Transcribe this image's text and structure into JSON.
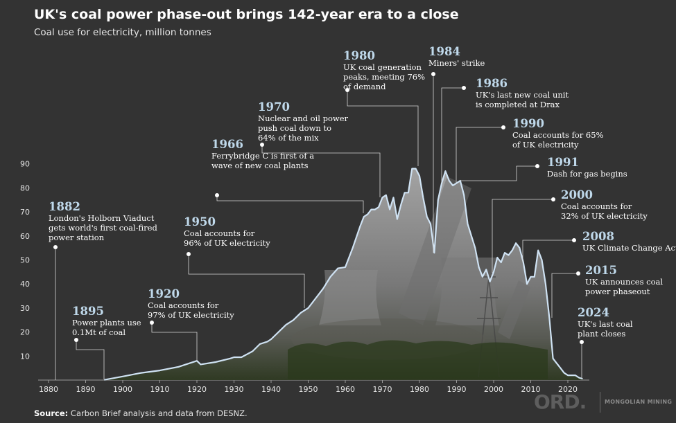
{
  "header": {
    "title": "UK's coal power phase-out brings 142-year era to a close",
    "subtitle": "Coal use for electricity, million tonnes"
  },
  "footer": {
    "source_label": "Source:",
    "source_text": "Carbon Brief analysis and data from DESNZ."
  },
  "logo": {
    "main": "ORD.",
    "sub": "MONGOLIAN MINING"
  },
  "colors": {
    "background": "#333333",
    "line": "#cfe2f3",
    "area": "#9a9a9a",
    "year_text": "#bfd8ea",
    "leader": "#d8d8d8"
  },
  "chart_data": {
    "type": "area",
    "title": "UK's coal power phase-out brings 142-year era to a close",
    "subtitle": "Coal use for electricity, million tonnes",
    "xlabel": "",
    "ylabel": "",
    "xlim": [
      1876,
      2026
    ],
    "ylim": [
      0,
      90
    ],
    "x_ticks": [
      1880,
      1890,
      1900,
      1910,
      1920,
      1930,
      1940,
      1950,
      1960,
      1970,
      1980,
      1990,
      2000,
      2010,
      2020
    ],
    "y_ticks": [
      10,
      20,
      30,
      40,
      50,
      60,
      70,
      80,
      90
    ],
    "grid": false,
    "series": [
      {
        "name": "Coal use for electricity",
        "x": [
          1895,
          1900,
          1905,
          1910,
          1915,
          1918,
          1920,
          1921,
          1925,
          1929,
          1930,
          1932,
          1935,
          1937,
          1939,
          1940,
          1944,
          1946,
          1948,
          1950,
          1952,
          1954,
          1956,
          1958,
          1960,
          1962,
          1964,
          1965,
          1966,
          1967,
          1968,
          1969,
          1970,
          1971,
          1972,
          1973,
          1974,
          1975,
          1976,
          1977,
          1978,
          1979,
          1980,
          1981,
          1982,
          1983,
          1984,
          1985,
          1986,
          1987,
          1988,
          1989,
          1990,
          1991,
          1992,
          1993,
          1994,
          1995,
          1996,
          1997,
          1998,
          1999,
          2000,
          2001,
          2002,
          2003,
          2004,
          2005,
          2006,
          2007,
          2008,
          2009,
          2010,
          2011,
          2012,
          2013,
          2014,
          2015,
          2016,
          2017,
          2018,
          2019,
          2020,
          2021,
          2022,
          2023,
          2024
        ],
        "values": [
          0.1,
          1.5,
          3,
          4,
          5.5,
          7,
          8,
          6.5,
          7.5,
          9,
          9.5,
          9.5,
          12,
          15,
          16,
          17,
          23,
          25,
          28,
          30,
          34,
          38,
          43,
          46.5,
          47,
          55,
          64,
          68,
          69,
          71,
          71,
          72,
          76,
          77,
          71,
          76,
          67,
          73,
          78,
          78,
          88,
          88,
          85,
          76,
          68,
          65,
          53,
          75,
          82,
          87,
          83,
          81,
          82,
          83,
          77,
          65,
          60,
          55,
          47,
          43,
          46,
          41,
          45,
          51,
          49,
          53,
          52,
          54,
          57,
          55,
          49,
          40,
          43,
          43,
          54,
          50,
          40,
          26,
          9,
          7,
          5,
          3,
          2,
          2,
          2,
          1,
          0.5
        ]
      }
    ],
    "annotations": [
      {
        "year": "1882",
        "x": 1882,
        "y": 55.5,
        "lines": [
          "London's Holborn Viaduct",
          "gets world's first coal-fired",
          "power station"
        ]
      },
      {
        "year": "1895",
        "x": 1895,
        "y": 0.1,
        "lines": [
          "Power plants use",
          "0.1Mt of coal"
        ]
      },
      {
        "year": "1920",
        "x": 1920,
        "y": 8,
        "lines": [
          "Coal accounts for",
          "97% of UK electricity"
        ]
      },
      {
        "year": "1950",
        "x": 1950,
        "y": 30,
        "lines": [
          "Coal accounts for",
          "96% of UK electricity"
        ]
      },
      {
        "year": "1966",
        "x": 1966,
        "y": 69,
        "lines": [
          "Ferrybridge C is first of a",
          "wave of new coal plants"
        ]
      },
      {
        "year": "1970",
        "x": 1970,
        "y": 76,
        "lines": [
          "Nuclear and oil power",
          "push coal down to",
          "64% of the mix"
        ]
      },
      {
        "year": "1980",
        "x": 1980,
        "y": 88,
        "lines": [
          "UK coal generation",
          "peaks, meeting 76%",
          "of demand"
        ]
      },
      {
        "year": "1984",
        "x": 1984,
        "y": 53,
        "lines": [
          "Miners' strike"
        ]
      },
      {
        "year": "1986",
        "x": 1986,
        "y": 82,
        "lines": [
          "UK's last new coal unit",
          "is completed at Drax"
        ]
      },
      {
        "year": "1990",
        "x": 1990,
        "y": 82,
        "lines": [
          "Coal accounts for 65%",
          "of UK electricity"
        ]
      },
      {
        "year": "1991",
        "x": 1991,
        "y": 83,
        "lines": [
          "Dash for gas begins"
        ]
      },
      {
        "year": "2000",
        "x": 2000,
        "y": 45,
        "lines": [
          "Coal accounts for",
          "32% of UK electricity"
        ]
      },
      {
        "year": "2008",
        "x": 2008,
        "y": 49,
        "lines": [
          "UK Climate Change Act"
        ]
      },
      {
        "year": "2015",
        "x": 2015,
        "y": 26,
        "lines": [
          "UK announces coal",
          "power phaseout"
        ]
      },
      {
        "year": "2024",
        "x": 2024,
        "y": 0.5,
        "lines": [
          "UK's last coal",
          "plant closes"
        ]
      }
    ]
  }
}
